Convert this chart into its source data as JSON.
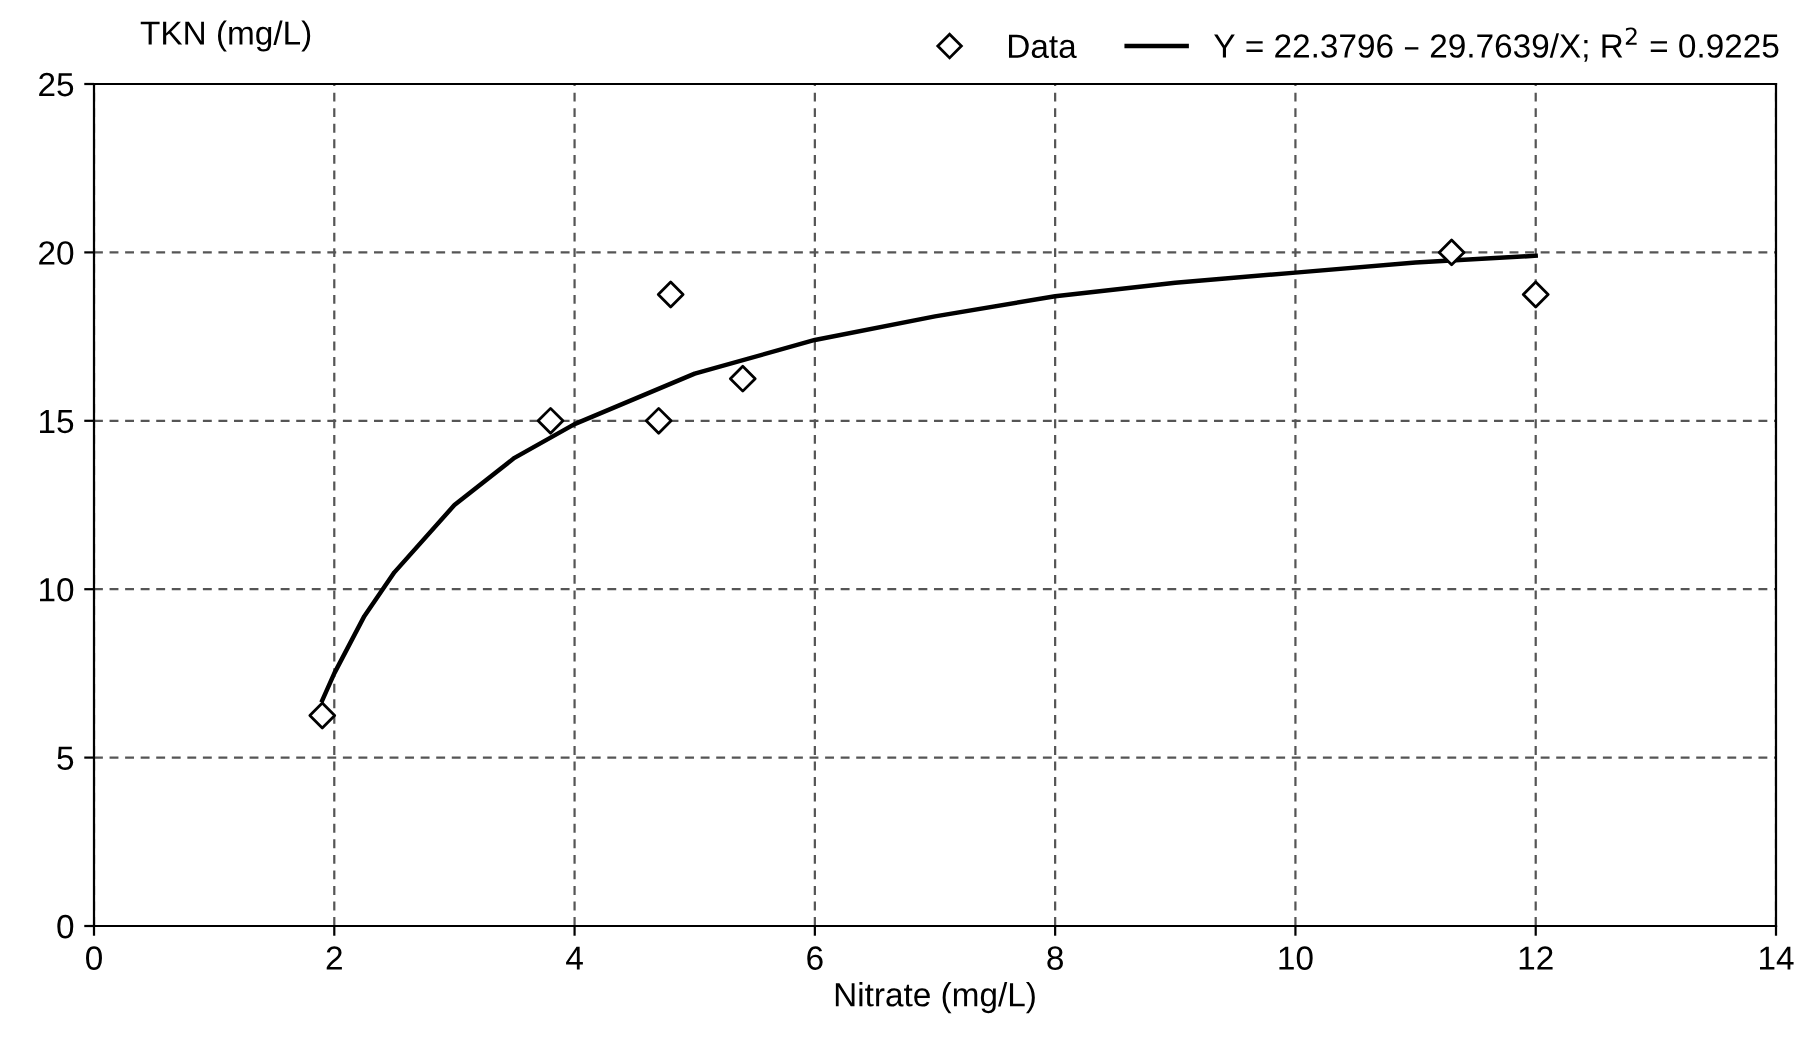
{
  "chart_data": {
    "type": "scatter",
    "xlabel": "Nitrate (mg/L)",
    "ylabel": "TKN (mg/L)",
    "xlim": [
      0,
      14
    ],
    "xticks": [
      0,
      2,
      4,
      6,
      8,
      10,
      12,
      14
    ],
    "ylim": [
      0,
      25
    ],
    "yticks": [
      0,
      5,
      10,
      15,
      20,
      25
    ],
    "grid": true,
    "legend": "top right",
    "marker": "diamond",
    "series": [
      {
        "name": "Data",
        "color": "#000000",
        "x": [
          1.9,
          3.8,
          4.7,
          4.8,
          5.4,
          11.3,
          12
        ],
        "values": [
          6.25,
          15,
          15,
          18.75,
          16.25,
          20,
          18.75
        ]
      },
      {
        "name": "Y = 22.3796 – 29.7639/X; R$^{2}$ = 0.9225",
        "type": "line",
        "color": "#000000",
        "marker": "none",
        "line_style": "solid",
        "x": [
          1.9,
          2,
          2.25,
          2.5,
          3,
          3.5,
          4,
          5,
          6,
          7,
          8,
          9,
          10,
          11,
          12
        ],
        "values": [
          6.7,
          7.5,
          9.2,
          10.5,
          12.5,
          13.9,
          14.9,
          16.4,
          17.4,
          18.1,
          18.7,
          19.1,
          19.4,
          19.7,
          19.9
        ]
      }
    ]
  }
}
